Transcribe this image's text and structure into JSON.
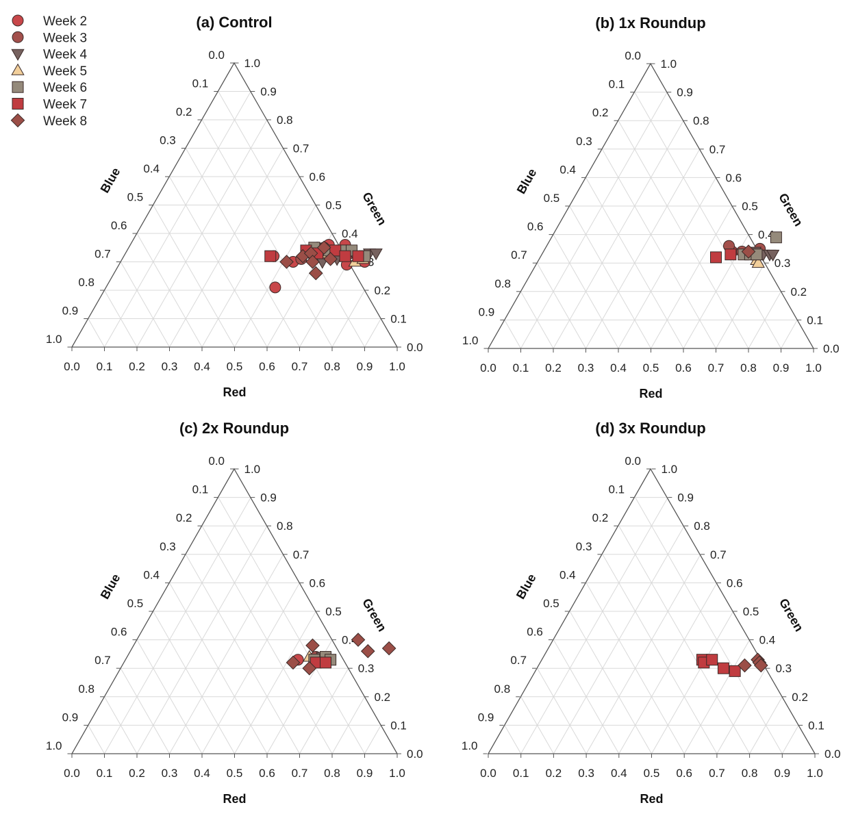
{
  "legend": {
    "placement": "top-left",
    "entries": [
      {
        "name": "Week 2",
        "marker": "circle",
        "color": "#c8474a"
      },
      {
        "name": "Week 3",
        "marker": "circle",
        "color": "#a3504c"
      },
      {
        "name": "Week 4",
        "marker": "triangle-down",
        "color": "#77625f"
      },
      {
        "name": "Week 5",
        "marker": "triangle-up",
        "color": "#f2cf9b"
      },
      {
        "name": "Week 6",
        "marker": "square",
        "color": "#958a7b"
      },
      {
        "name": "Week 7",
        "marker": "square",
        "color": "#c03c40"
      },
      {
        "name": "Week 8",
        "marker": "diamond",
        "color": "#9b4e47"
      }
    ]
  },
  "axes": {
    "red": "Red",
    "green": "Green",
    "blue": "Blue"
  },
  "ticks": [
    "0.0",
    "0.1",
    "0.2",
    "0.3",
    "0.4",
    "0.5",
    "0.6",
    "0.7",
    "0.8",
    "0.9",
    "1.0"
  ],
  "chart_data": [
    {
      "type": "scatter",
      "subtype": "ternary",
      "title": "(a) Control",
      "grid": true,
      "series": [
        {
          "name": "Week 2",
          "points": [
            [
              0.46,
              0.32
            ],
            [
              0.52,
              0.21
            ],
            [
              0.57,
              0.33
            ],
            [
              0.61,
              0.36
            ],
            [
              0.66,
              0.36
            ],
            [
              0.7,
              0.29
            ],
            [
              0.75,
              0.3
            ],
            [
              0.53,
              0.3
            ],
            [
              0.58,
              0.35
            ]
          ]
        },
        {
          "name": "Week 3",
          "points": [
            [
              0.55,
              0.31
            ],
            [
              0.6,
              0.35
            ],
            [
              0.65,
              0.34
            ],
            [
              0.69,
              0.33
            ]
          ]
        },
        {
          "name": "Week 4",
          "points": [
            [
              0.58,
              0.32
            ],
            [
              0.62,
              0.3
            ],
            [
              0.66,
              0.31
            ],
            [
              0.71,
              0.32
            ],
            [
              0.75,
              0.33
            ],
            [
              0.77,
              0.33
            ]
          ]
        },
        {
          "name": "Week 5",
          "points": [
            [
              0.6,
              0.33
            ],
            [
              0.68,
              0.32
            ],
            [
              0.72,
              0.3
            ],
            [
              0.74,
              0.31
            ]
          ]
        },
        {
          "name": "Week 6",
          "points": [
            [
              0.57,
              0.35
            ],
            [
              0.62,
              0.34
            ],
            [
              0.66,
              0.34
            ],
            [
              0.69,
              0.34
            ],
            [
              0.74,
              0.32
            ]
          ]
        },
        {
          "name": "Week 7",
          "points": [
            [
              0.45,
              0.32
            ],
            [
              0.55,
              0.34
            ],
            [
              0.59,
              0.33
            ],
            [
              0.64,
              0.34
            ],
            [
              0.68,
              0.32
            ],
            [
              0.72,
              0.32
            ]
          ]
        },
        {
          "name": "Week 8",
          "points": [
            [
              0.51,
              0.3
            ],
            [
              0.55,
              0.32
            ],
            [
              0.57,
              0.33
            ],
            [
              0.59,
              0.3
            ],
            [
              0.62,
              0.26
            ],
            [
              0.64,
              0.31
            ],
            [
              0.6,
              0.35
            ]
          ]
        }
      ]
    },
    {
      "type": "scatter",
      "subtype": "ternary",
      "title": "(b) 1x Roundup",
      "grid": true,
      "series": [
        {
          "name": "Week 2",
          "points": [
            [
              0.58,
              0.34
            ]
          ]
        },
        {
          "name": "Week 3",
          "points": [
            [
              0.56,
              0.36
            ],
            [
              0.61,
              0.34
            ],
            [
              0.66,
              0.35
            ]
          ]
        },
        {
          "name": "Week 4",
          "points": [
            [
              0.65,
              0.34
            ],
            [
              0.68,
              0.33
            ],
            [
              0.7,
              0.33
            ],
            [
              0.71,
              0.33
            ]
          ]
        },
        {
          "name": "Week 5",
          "points": [
            [
              0.67,
              0.31
            ],
            [
              0.68,
              0.3
            ]
          ]
        },
        {
          "name": "Week 6",
          "points": [
            [
              0.62,
              0.33
            ],
            [
              0.64,
              0.33
            ],
            [
              0.66,
              0.33
            ],
            [
              0.69,
              0.39
            ]
          ]
        },
        {
          "name": "Week 7",
          "points": [
            [
              0.54,
              0.32
            ],
            [
              0.58,
              0.33
            ]
          ]
        },
        {
          "name": "Week 8",
          "points": [
            [
              0.63,
              0.34
            ]
          ]
        }
      ]
    },
    {
      "type": "scatter",
      "subtype": "ternary",
      "title": "(c) 2x Roundup",
      "grid": true,
      "series": [
        {
          "name": "Week 2",
          "points": [
            [
              0.53,
              0.33
            ]
          ]
        },
        {
          "name": "Week 3",
          "points": [
            [
              0.58,
              0.34
            ]
          ]
        },
        {
          "name": "Week 4",
          "points": [
            [
              0.6,
              0.34
            ],
            [
              0.62,
              0.33
            ]
          ]
        },
        {
          "name": "Week 5",
          "points": [
            [
              0.56,
              0.34
            ]
          ]
        },
        {
          "name": "Week 6",
          "points": [
            [
              0.58,
              0.33
            ],
            [
              0.61,
              0.34
            ],
            [
              0.63,
              0.33
            ]
          ]
        },
        {
          "name": "Week 7",
          "points": [
            [
              0.59,
              0.32
            ],
            [
              0.62,
              0.32
            ]
          ]
        },
        {
          "name": "Week 8",
          "points": [
            [
              0.52,
              0.32
            ],
            [
              0.55,
              0.38
            ],
            [
              0.58,
              0.3
            ],
            [
              0.68,
              0.4
            ],
            [
              0.73,
              0.36
            ],
            [
              0.79,
              0.37
            ]
          ]
        }
      ]
    },
    {
      "type": "scatter",
      "subtype": "ternary",
      "title": "(d) 3x Roundup",
      "grid": true,
      "series": [
        {
          "name": "Week 7",
          "points": [
            [
              0.49,
              0.33
            ],
            [
              0.5,
              0.32
            ],
            [
              0.52,
              0.33
            ],
            [
              0.57,
              0.3
            ],
            [
              0.61,
              0.29
            ]
          ]
        },
        {
          "name": "Week 8",
          "points": [
            [
              0.63,
              0.31
            ],
            [
              0.66,
              0.33
            ],
            [
              0.67,
              0.32
            ],
            [
              0.68,
              0.31
            ]
          ]
        }
      ]
    }
  ]
}
